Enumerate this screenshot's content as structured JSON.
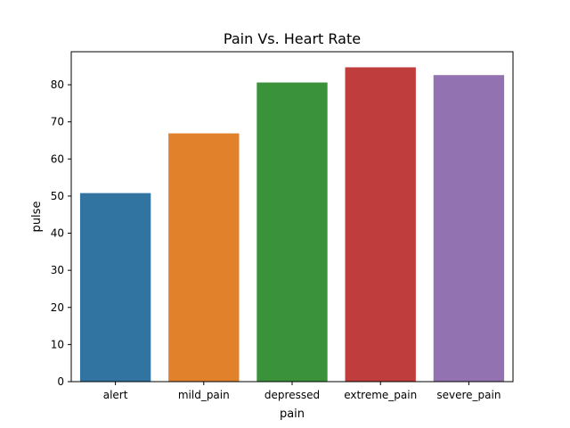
{
  "chart_data": {
    "type": "bar",
    "title": "Pain Vs. Heart Rate",
    "xlabel": "pain",
    "ylabel": "pulse",
    "categories": [
      "alert",
      "mild_pain",
      "depressed",
      "extreme_pain",
      "severe_pain"
    ],
    "values": [
      50.8,
      66.9,
      80.6,
      84.7,
      82.6
    ],
    "colors": [
      "#3274a1",
      "#e1812c",
      "#3a923a",
      "#c03d3e",
      "#9372b2"
    ],
    "ylim": [
      0,
      88.9
    ],
    "yticks": [
      0,
      10,
      20,
      30,
      40,
      50,
      60,
      70,
      80
    ],
    "grid": false,
    "legend": "none"
  }
}
